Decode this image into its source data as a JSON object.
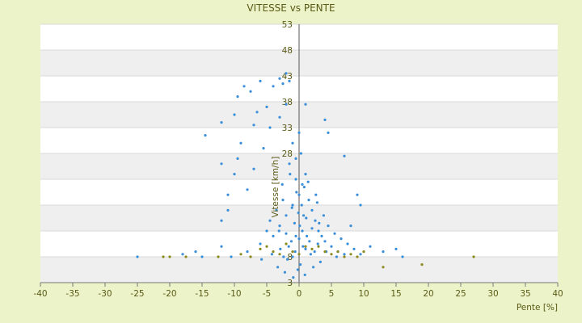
{
  "chart_data": {
    "type": "scatter",
    "title": "VITESSE vs PENTE",
    "xlabel": "Pente [%]",
    "ylabel": "Vitesse [km/h]",
    "xlim": [
      -40,
      40
    ],
    "ylim": [
      3,
      53
    ],
    "x_ticks": [
      -40,
      -35,
      -30,
      -25,
      -20,
      -15,
      -10,
      -5,
      0,
      5,
      10,
      15,
      20,
      25,
      30,
      35,
      40
    ],
    "y_ticks": [
      3,
      8,
      13,
      18,
      23,
      28,
      33,
      38,
      43,
      48,
      53
    ],
    "x_tick_labels": [
      "-40",
      "-35",
      "-30",
      "-25",
      "-20",
      "-15",
      "-10",
      "-5",
      "0",
      "5",
      "10",
      "15",
      "20",
      "25",
      "30",
      "35",
      "40"
    ],
    "y_tick_labels": [
      "3",
      "8",
      "",
      "",
      "",
      "28",
      "33",
      "38",
      "43",
      "48",
      "53"
    ],
    "grid": true,
    "band_colors": [
      "#ffffff",
      "#efefef"
    ],
    "series": [
      {
        "color": "#3b8fd8",
        "points": [
          [
            -25.0,
            8.0
          ],
          [
            -15.0,
            8.0
          ],
          [
            -12.0,
            10.0
          ],
          [
            -16.0,
            9.0
          ],
          [
            -14.5,
            31.5
          ],
          [
            -12.0,
            34.0
          ],
          [
            -12.0,
            26.0
          ],
          [
            -11.0,
            20.0
          ],
          [
            -10.0,
            35.5
          ],
          [
            -9.5,
            39.0
          ],
          [
            -8.5,
            41.0
          ],
          [
            -7.5,
            40.0
          ],
          [
            -6.0,
            42.0
          ],
          [
            -5.0,
            37.0
          ],
          [
            -4.0,
            41.0
          ],
          [
            -3.0,
            42.5
          ],
          [
            -2.5,
            41.5
          ],
          [
            -2.0,
            43.5
          ],
          [
            -1.5,
            42.0
          ],
          [
            -6.5,
            36.0
          ],
          [
            -7.0,
            33.5
          ],
          [
            -9.0,
            30.0
          ],
          [
            -9.5,
            27.0
          ],
          [
            -10.0,
            24.0
          ],
          [
            -11.0,
            17.0
          ],
          [
            -12.0,
            15.0
          ],
          [
            -8.0,
            21.0
          ],
          [
            -7.0,
            25.0
          ],
          [
            -5.5,
            29.0
          ],
          [
            -4.5,
            33.0
          ],
          [
            -3.0,
            35.0
          ],
          [
            -2.0,
            37.5
          ],
          [
            1.0,
            37.5
          ],
          [
            4.0,
            34.5
          ],
          [
            4.5,
            32.0
          ],
          [
            7.0,
            27.5
          ],
          [
            9.0,
            20.0
          ],
          [
            9.5,
            18.0
          ],
          [
            8.0,
            14.0
          ],
          [
            11.0,
            10.0
          ],
          [
            13.0,
            9.0
          ],
          [
            15.0,
            9.5
          ],
          [
            16.0,
            8.0
          ],
          [
            -18.0,
            8.5
          ],
          [
            -10.5,
            8.0
          ],
          [
            -8.0,
            9.0
          ],
          [
            -6.0,
            10.5
          ],
          [
            -4.0,
            12.0
          ],
          [
            -3.0,
            14.0
          ],
          [
            -2.0,
            16.0
          ],
          [
            -1.0,
            18.0
          ],
          [
            0.0,
            20.0
          ],
          [
            0.5,
            22.0
          ],
          [
            1.0,
            24.0
          ],
          [
            1.5,
            19.0
          ],
          [
            2.0,
            17.0
          ],
          [
            2.5,
            15.0
          ],
          [
            3.0,
            13.0
          ],
          [
            3.5,
            12.0
          ],
          [
            4.0,
            11.0
          ],
          [
            5.0,
            10.0
          ],
          [
            6.0,
            9.0
          ],
          [
            7.0,
            8.5
          ],
          [
            -1.5,
            26.0
          ],
          [
            -0.5,
            27.0
          ],
          [
            0.3,
            28.0
          ],
          [
            -1.0,
            30.0
          ],
          [
            0.0,
            32.0
          ],
          [
            -0.5,
            23.0
          ],
          [
            0.8,
            21.5
          ],
          [
            -2.5,
            19.0
          ],
          [
            -3.5,
            17.0
          ],
          [
            -4.5,
            15.0
          ],
          [
            -5.0,
            13.0
          ],
          [
            2.8,
            18.5
          ],
          [
            3.8,
            16.0
          ],
          [
            4.5,
            14.0
          ],
          [
            5.5,
            12.5
          ],
          [
            6.5,
            11.5
          ],
          [
            7.5,
            10.5
          ],
          [
            8.5,
            9.5
          ],
          [
            9.5,
            8.5
          ],
          [
            1.2,
            12.0
          ],
          [
            -1.2,
            11.0
          ],
          [
            0.6,
            10.0
          ],
          [
            -0.6,
            9.0
          ],
          [
            1.8,
            8.5
          ],
          [
            -1.8,
            7.5
          ],
          [
            0.2,
            6.5
          ],
          [
            -0.2,
            5.5
          ],
          [
            0.9,
            4.5
          ],
          [
            -0.9,
            4.0
          ],
          [
            2.2,
            6.0
          ],
          [
            -2.2,
            5.0
          ],
          [
            3.3,
            7.0
          ],
          [
            -3.3,
            6.0
          ],
          [
            0.1,
            14.0
          ],
          [
            -0.1,
            16.5
          ],
          [
            0.4,
            18.0
          ],
          [
            -0.4,
            20.5
          ],
          [
            1.4,
            22.5
          ],
          [
            -1.4,
            24.0
          ],
          [
            2.6,
            20.0
          ],
          [
            -2.6,
            22.0
          ],
          [
            3.1,
            14.5
          ],
          [
            -3.1,
            13.0
          ],
          [
            1.1,
            15.5
          ],
          [
            -1.1,
            17.5
          ],
          [
            2.0,
            13.5
          ],
          [
            -2.0,
            12.5
          ],
          [
            0.7,
            16.0
          ],
          [
            -0.7,
            14.5
          ],
          [
            1.6,
            11.0
          ],
          [
            -1.6,
            10.0
          ],
          [
            2.9,
            10.5
          ],
          [
            -2.9,
            9.5
          ],
          [
            4.2,
            9.0
          ],
          [
            -4.2,
            8.5
          ],
          [
            5.8,
            8.0
          ],
          [
            -5.8,
            7.5
          ],
          [
            0.0,
            11.5
          ],
          [
            0.5,
            13.0
          ],
          [
            -0.5,
            12.0
          ],
          [
            1.0,
            9.5
          ],
          [
            -1.0,
            8.0
          ],
          [
            2.4,
            9.0
          ],
          [
            -2.4,
            8.0
          ]
        ]
      },
      {
        "color": "#8a8a1e",
        "points": [
          [
            -21.0,
            8.0
          ],
          [
            -20.0,
            8.0
          ],
          [
            -17.5,
            8.0
          ],
          [
            -12.5,
            8.0
          ],
          [
            -9.0,
            8.5
          ],
          [
            -7.5,
            8.0
          ],
          [
            -6.0,
            9.5
          ],
          [
            -5.0,
            10.0
          ],
          [
            -4.0,
            9.0
          ],
          [
            -3.0,
            8.5
          ],
          [
            -2.0,
            10.5
          ],
          [
            -1.0,
            9.0
          ],
          [
            0.0,
            8.5
          ],
          [
            1.0,
            10.0
          ],
          [
            2.0,
            9.5
          ],
          [
            3.0,
            10.0
          ],
          [
            4.0,
            9.0
          ],
          [
            5.0,
            8.5
          ],
          [
            6.0,
            9.0
          ],
          [
            7.0,
            8.0
          ],
          [
            8.0,
            8.5
          ],
          [
            9.0,
            8.0
          ],
          [
            10.0,
            9.0
          ],
          [
            13.0,
            6.0
          ],
          [
            19.0,
            6.5
          ],
          [
            27.0,
            8.0
          ]
        ]
      }
    ]
  }
}
